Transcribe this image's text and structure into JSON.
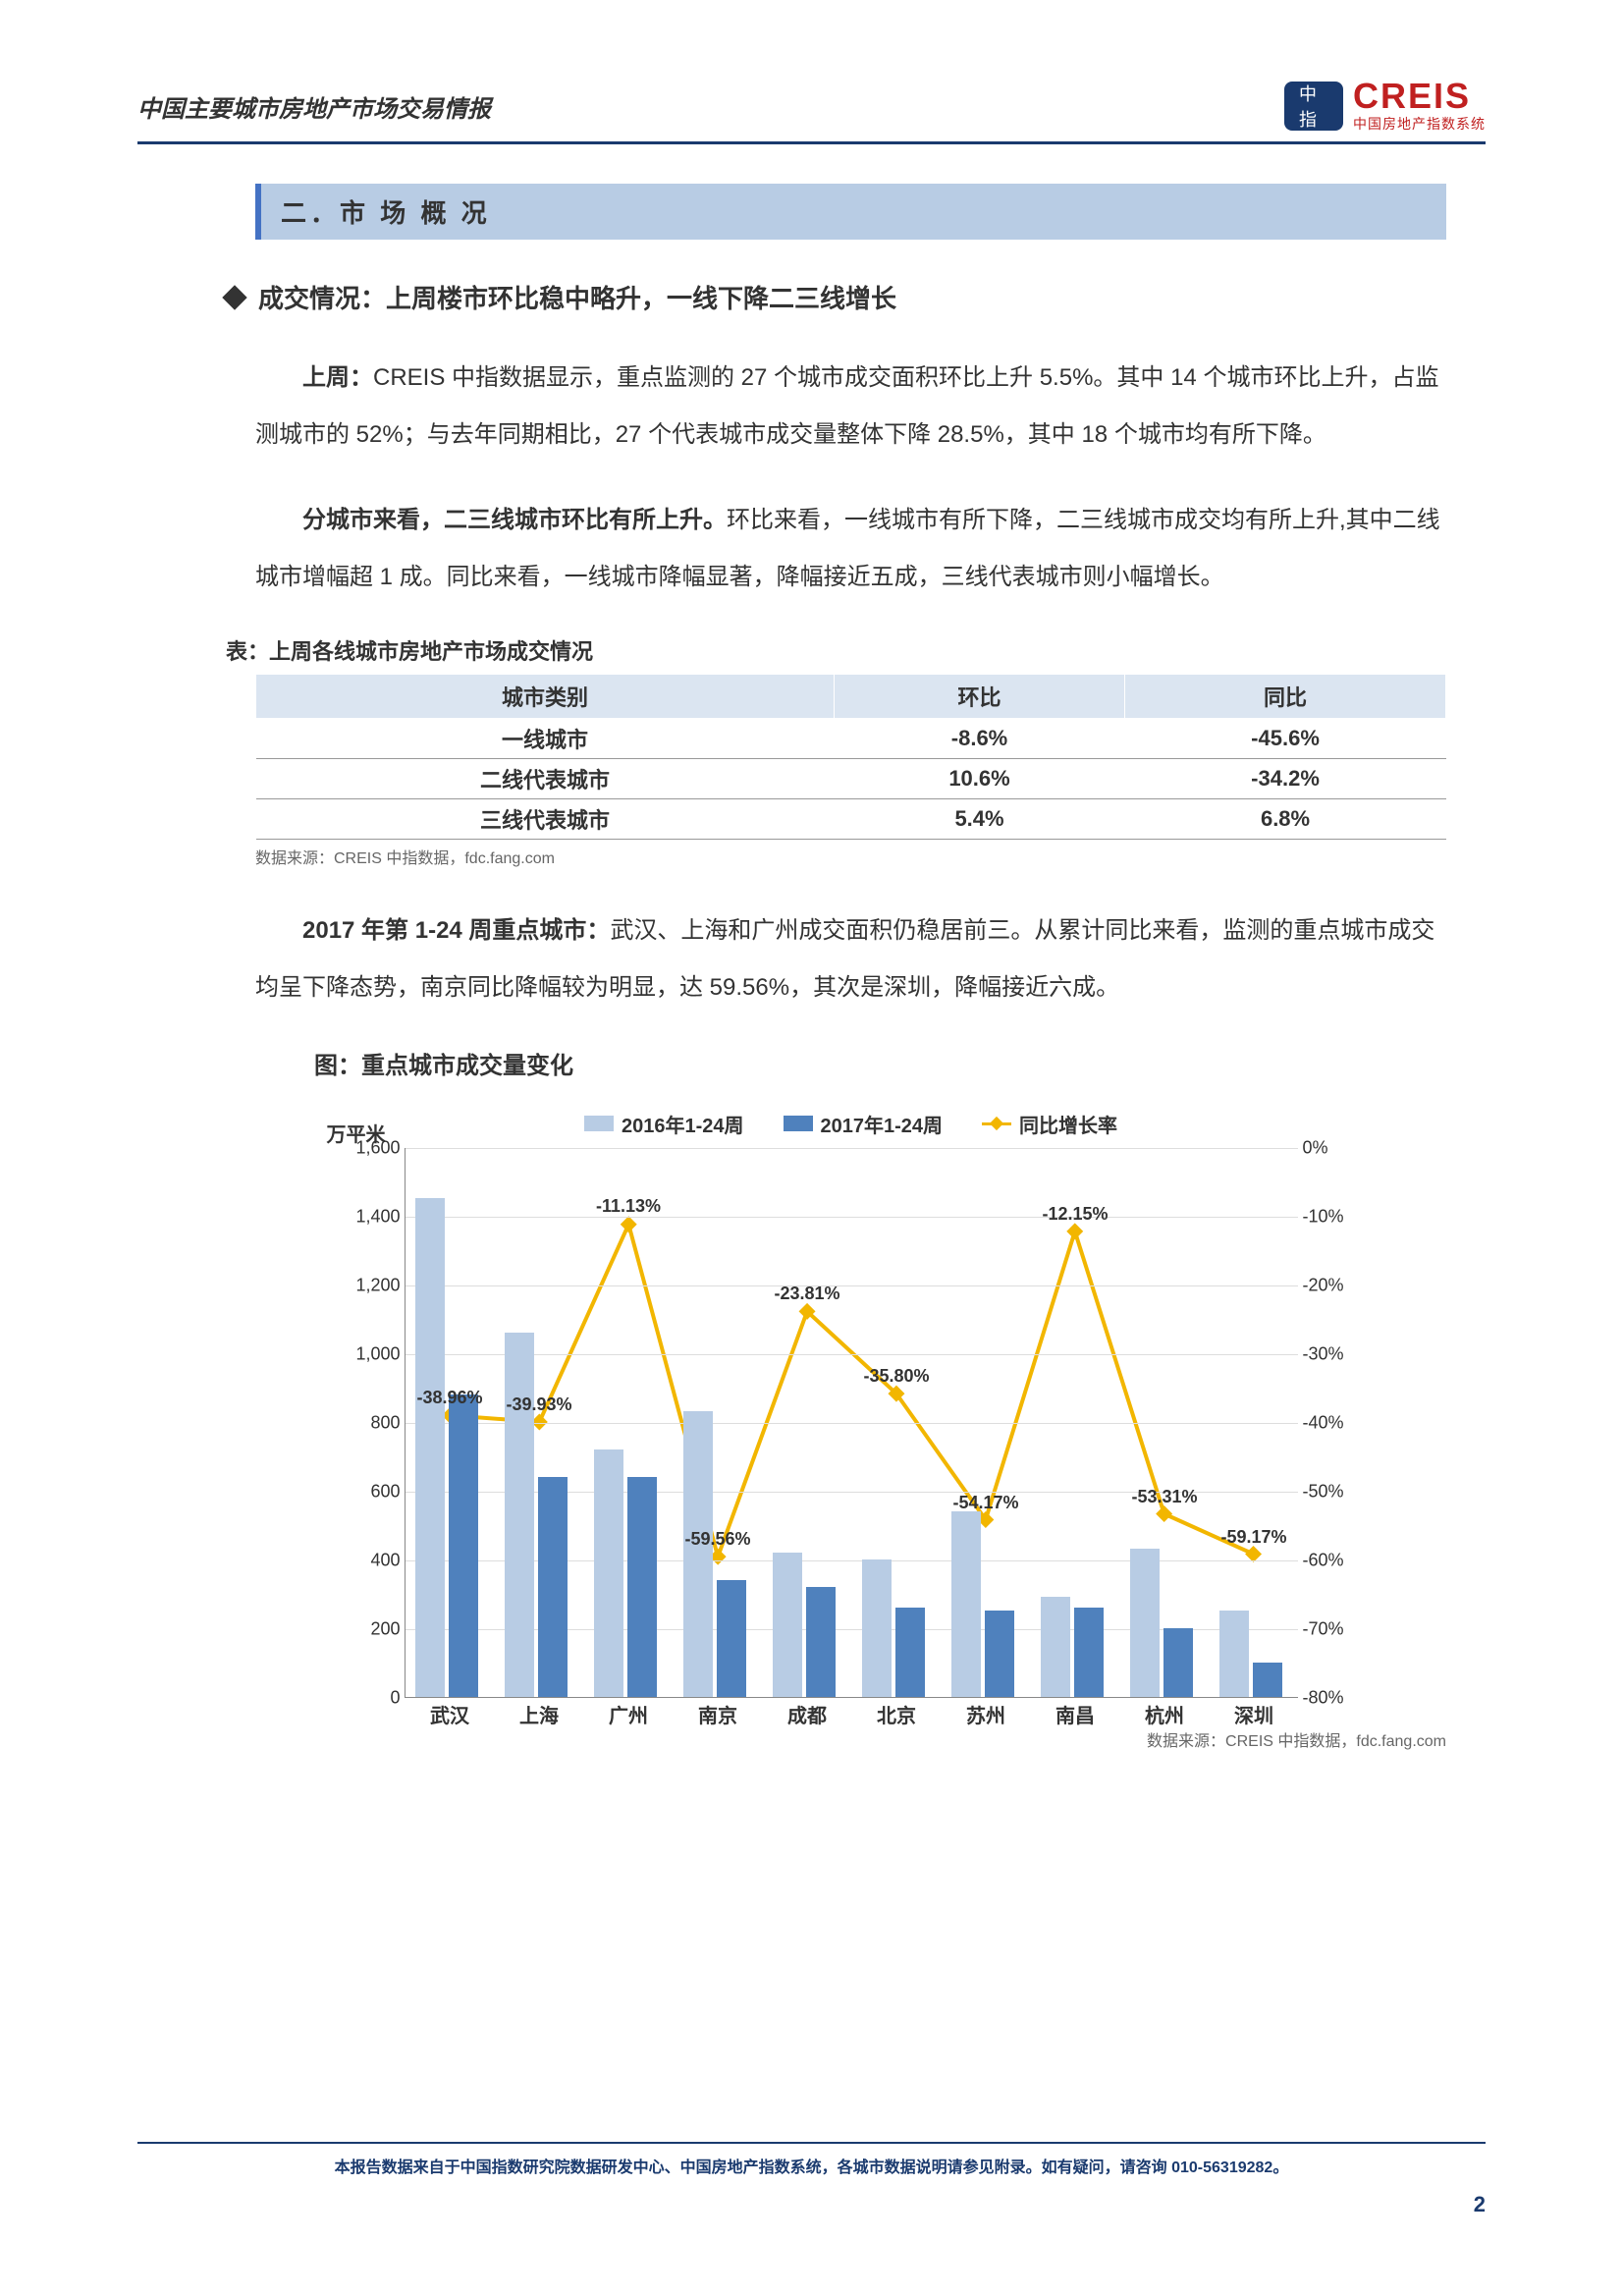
{
  "header": {
    "title": "中国主要城市房地产市场交易情报",
    "logo_main": "CREIS",
    "logo_sub": "中国房地产指数系统"
  },
  "section": {
    "number_title": "二．市 场 概 况",
    "bullet": "成交情况：上周楼市环比稳中略升，一线下降二三线增长"
  },
  "paragraphs": {
    "p1_lead": "上周：",
    "p1_body": "CREIS 中指数据显示，重点监测的 27 个城市成交面积环比上升 5.5%。其中 14 个城市环比上升，占监测城市的 52%；与去年同期相比，27 个代表城市成交量整体下降 28.5%，其中 18 个城市均有所下降。",
    "p2_lead": "分城市来看，二三线城市环比有所上升。",
    "p2_body": "环比来看，一线城市有所下降，二三线城市成交均有所上升,其中二线城市增幅超 1 成。同比来看，一线城市降幅显著，降幅接近五成，三线代表城市则小幅增长。",
    "p3_lead": "2017 年第 1-24 周重点城市：",
    "p3_body": "武汉、上海和广州成交面积仍稳居前三。从累计同比来看，监测的重点城市成交均呈下降态势，南京同比降幅较为明显，达 59.56%，其次是深圳，降幅接近六成。"
  },
  "table": {
    "caption": "表：上周各线城市房地产市场成交情况",
    "columns": [
      "城市类别",
      "环比",
      "同比"
    ],
    "rows": [
      [
        "一线城市",
        "-8.6%",
        "-45.6%"
      ],
      [
        "二线代表城市",
        "10.6%",
        "-34.2%"
      ],
      [
        "三线代表城市",
        "5.4%",
        "6.8%"
      ]
    ],
    "source": "数据来源：CREIS 中指数据，fdc.fang.com"
  },
  "chart": {
    "caption": "图：重点城市成交量变化",
    "legend": {
      "series1": "2016年1-24周",
      "series2": "2017年1-24周",
      "series3": "同比增长率"
    },
    "y_left_label": "万平米",
    "y_left_max": 1600,
    "y_left_step": 200,
    "y_left_ticks": [
      "0",
      "200",
      "400",
      "600",
      "800",
      "1,000",
      "1,200",
      "1,400",
      "1,600"
    ],
    "y_right_min": -80,
    "y_right_max": 0,
    "y_right_step": 10,
    "y_right_ticks": [
      "0%",
      "-10%",
      "-20%",
      "-30%",
      "-40%",
      "-50%",
      "-60%",
      "-70%",
      "-80%"
    ],
    "categories": [
      "武汉",
      "上海",
      "广州",
      "南京",
      "成都",
      "北京",
      "苏州",
      "南昌",
      "杭州",
      "深圳"
    ],
    "series_2016": [
      1450,
      1060,
      720,
      830,
      420,
      400,
      540,
      290,
      430,
      250
    ],
    "series_2017": [
      880,
      640,
      640,
      340,
      320,
      260,
      250,
      260,
      200,
      100
    ],
    "growth_rate": [
      -38.96,
      -39.93,
      -11.13,
      -59.56,
      -23.81,
      -35.8,
      -54.17,
      -12.15,
      -53.31,
      -59.17
    ],
    "growth_labels": [
      "-38.96%",
      "-39.93%",
      "-11.13%",
      "-59.56%",
      "-23.81%",
      "-35.80%",
      "-54.17%",
      "-12.15%",
      "-53.31%",
      "-59.17%"
    ],
    "colors": {
      "series1": "#b8cce4",
      "series2": "#4f81bd",
      "line": "#f2b600",
      "grid": "#dddddd"
    },
    "source": "数据来源：CREIS 中指数据，fdc.fang.com"
  },
  "footer": {
    "text": "本报告数据来自于中国指数研究院数据研发中心、中国房地产指数系统，各城市数据说明请参见附录。如有疑问，请咨询 010-56319282。",
    "page": "2"
  }
}
